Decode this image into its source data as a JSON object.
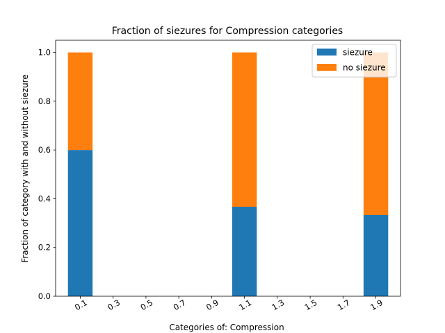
{
  "chart_data": {
    "type": "bar",
    "stacked": true,
    "title": "Fraction of siezures for Compression  categories",
    "xlabel": "Categories of: Compression",
    "ylabel": "Fraction of category with and without siezure",
    "x_ticks": [
      0.1,
      0.3,
      0.5,
      0.7,
      0.9,
      1.1,
      1.3,
      1.5,
      1.7,
      1.9
    ],
    "x_tick_labels": [
      "0.1",
      "0.3",
      "0.5",
      "0.7",
      "0.9",
      "1.1",
      "1.3",
      "1.5",
      "1.7",
      "1.9"
    ],
    "xlim": [
      -0.05,
      2.05
    ],
    "y_ticks": [
      0.0,
      0.2,
      0.4,
      0.6,
      0.8,
      1.0
    ],
    "y_tick_labels": [
      "0.0",
      "0.2",
      "0.4",
      "0.6",
      "0.8",
      "1.0"
    ],
    "ylim": [
      0,
      1.05
    ],
    "x": [
      0.1,
      1.1,
      1.9
    ],
    "series": [
      {
        "name": "siezure",
        "color": "#1f77b4",
        "values": [
          0.6,
          0.367,
          0.333
        ]
      },
      {
        "name": "no siezure",
        "color": "#ff7f0e",
        "values": [
          0.4,
          0.633,
          0.667
        ]
      }
    ],
    "grid": false,
    "legend_position": "top-right"
  }
}
